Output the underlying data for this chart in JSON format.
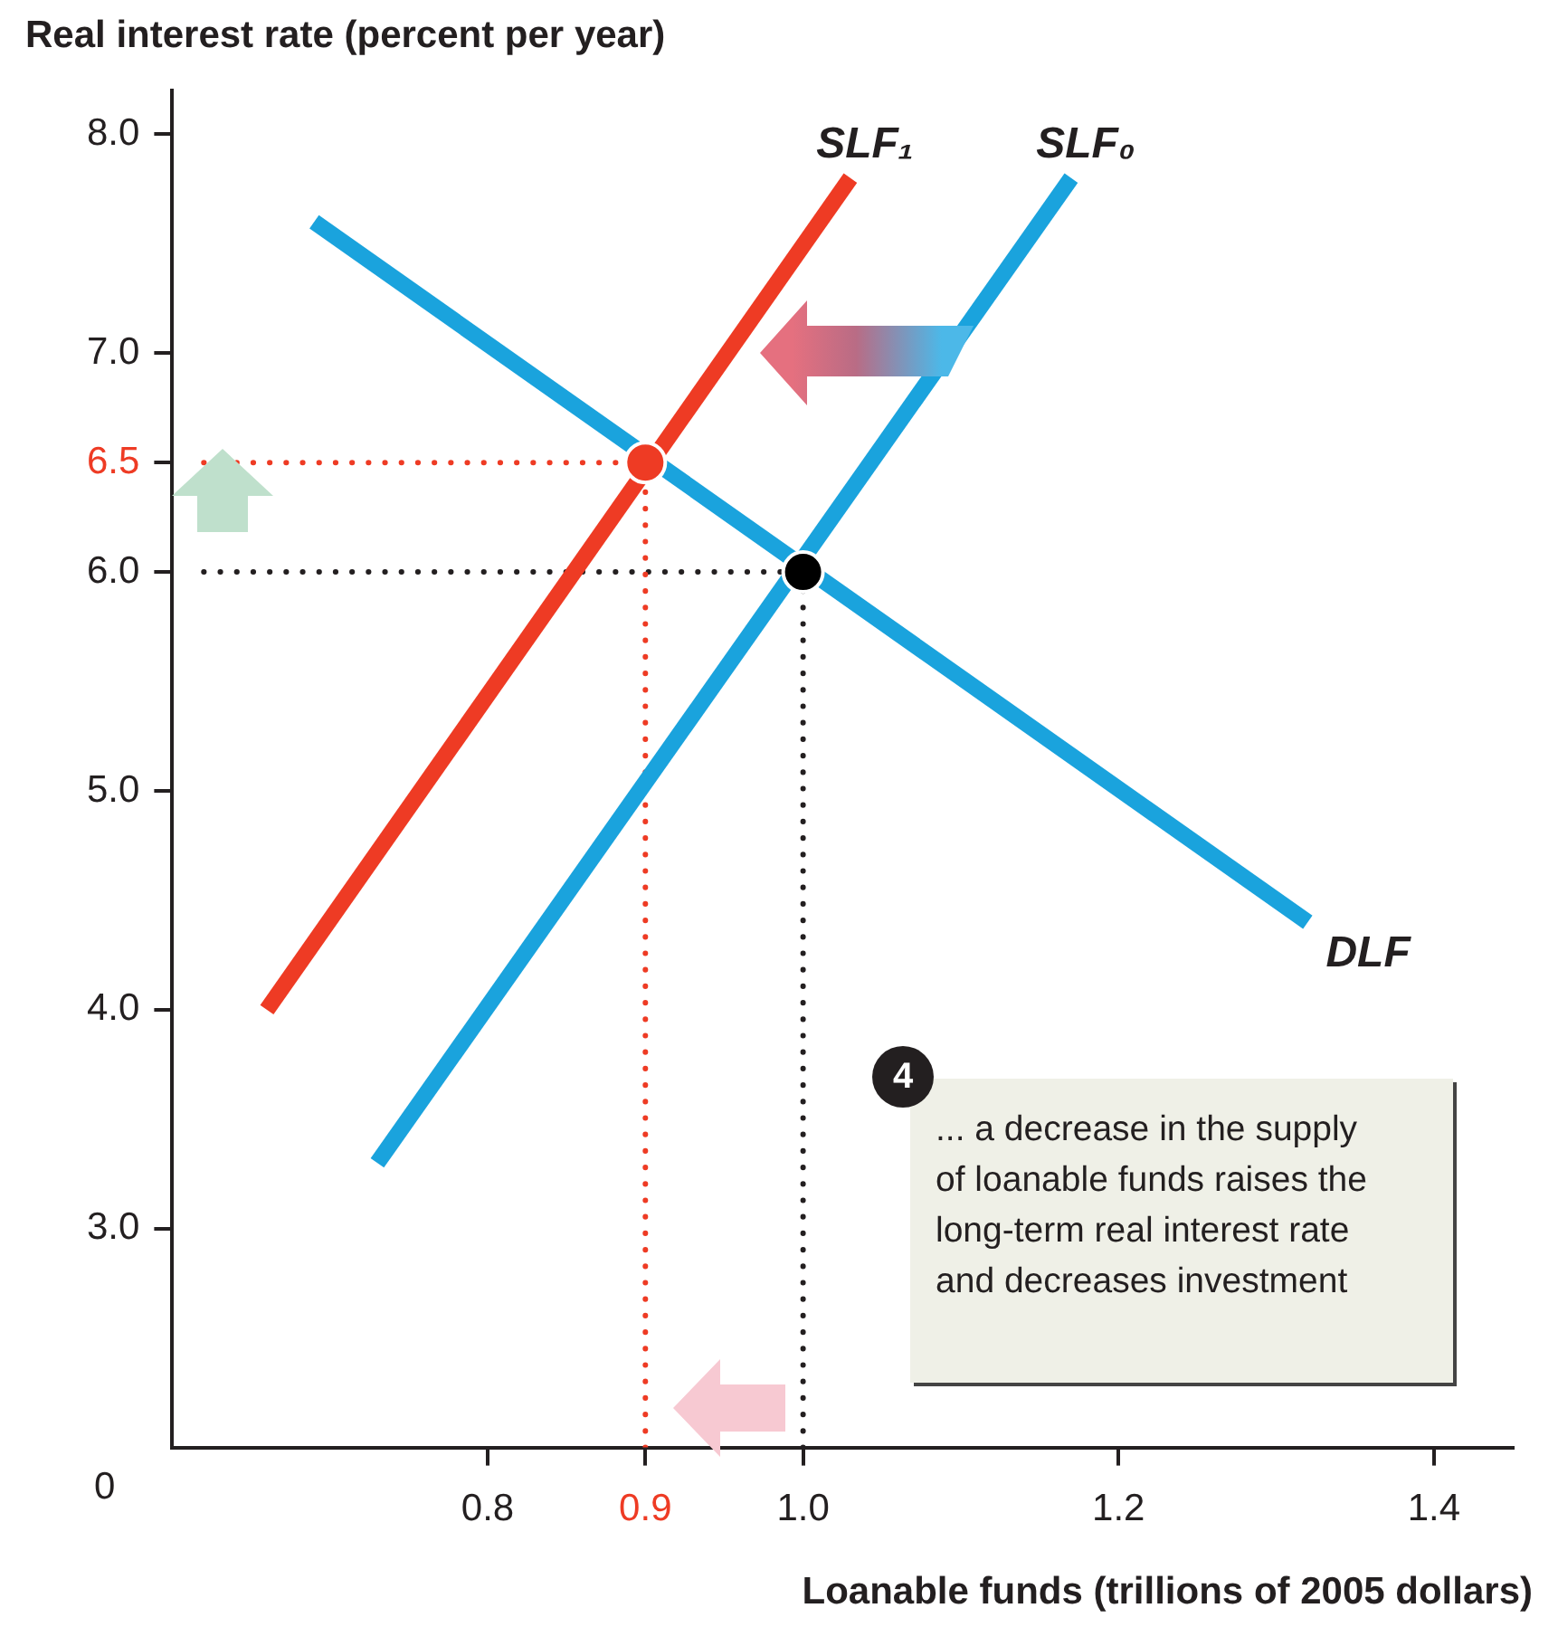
{
  "chart_data": {
    "type": "line",
    "xlabel": "Loanable funds (trillions of 2005 dollars)",
    "ylabel": "Real interest rate (percent per year)",
    "xlim": [
      0.6,
      1.45
    ],
    "xticks": [
      {
        "value": 0.8,
        "label": "0.8"
      },
      {
        "value": 0.9,
        "label": "0.9"
      },
      {
        "value": 1.0,
        "label": "1.0"
      },
      {
        "value": 1.2,
        "label": "1.2"
      },
      {
        "value": 1.4,
        "label": "1.4"
      }
    ],
    "ylim": [
      2.0,
      8.2
    ],
    "yticks": [
      {
        "value": 3,
        "label": "3.0"
      },
      {
        "value": 4,
        "label": "4.0"
      },
      {
        "value": 5,
        "label": "5.0"
      },
      {
        "value": 6,
        "label": "6.0"
      },
      {
        "value": 6.5,
        "label": "6.5"
      },
      {
        "value": 7,
        "label": "7.0"
      },
      {
        "value": 8,
        "label": "8.0"
      }
    ],
    "series": [
      {
        "name": "SLF₁",
        "color": "#ee3b24",
        "x": [
          0.66,
          1.03
        ],
        "values": [
          4.0,
          7.8
        ]
      },
      {
        "name": "SLF₀",
        "color": "#1aa3dd",
        "x": [
          0.73,
          1.17
        ],
        "values": [
          3.3,
          7.8
        ]
      },
      {
        "name": "DLF",
        "color": "#1aa3dd",
        "x": [
          0.69,
          1.32
        ],
        "values": [
          7.6,
          4.4
        ]
      },
      {
        "type": "line",
        "color": "#ee3b24",
        "line_style": "dotted",
        "x": [
          0.62,
          0.9
        ],
        "values": [
          6.5,
          6.5
        ]
      },
      {
        "type": "line",
        "color": "#ee3b24",
        "line_style": "dotted",
        "x": [
          0.9,
          0.9
        ],
        "values": [
          2.0,
          6.5
        ]
      },
      {
        "type": "line",
        "color": "#231f20",
        "line_style": "dotted",
        "x": [
          0.62,
          1.0
        ],
        "values": [
          6.0,
          6.0
        ]
      },
      {
        "type": "line",
        "color": "#231f20",
        "line_style": "dotted",
        "x": [
          1.0,
          1.0
        ],
        "values": [
          2.0,
          6.0
        ]
      },
      {
        "type": "scatter",
        "marker": "circle",
        "color": "#ee3b24",
        "x": [
          0.9
        ],
        "values": [
          6.5
        ]
      },
      {
        "type": "scatter",
        "marker": "circle",
        "color": "#000000",
        "x": [
          1.0
        ],
        "values": [
          6.0
        ]
      }
    ],
    "annotations": [
      "0",
      "4",
      "... a decrease in the supply of loanable funds raises the long-term real interest rate and decreases investment"
    ],
    "grid": false,
    "legend": false,
    "line_style": "solid"
  }
}
